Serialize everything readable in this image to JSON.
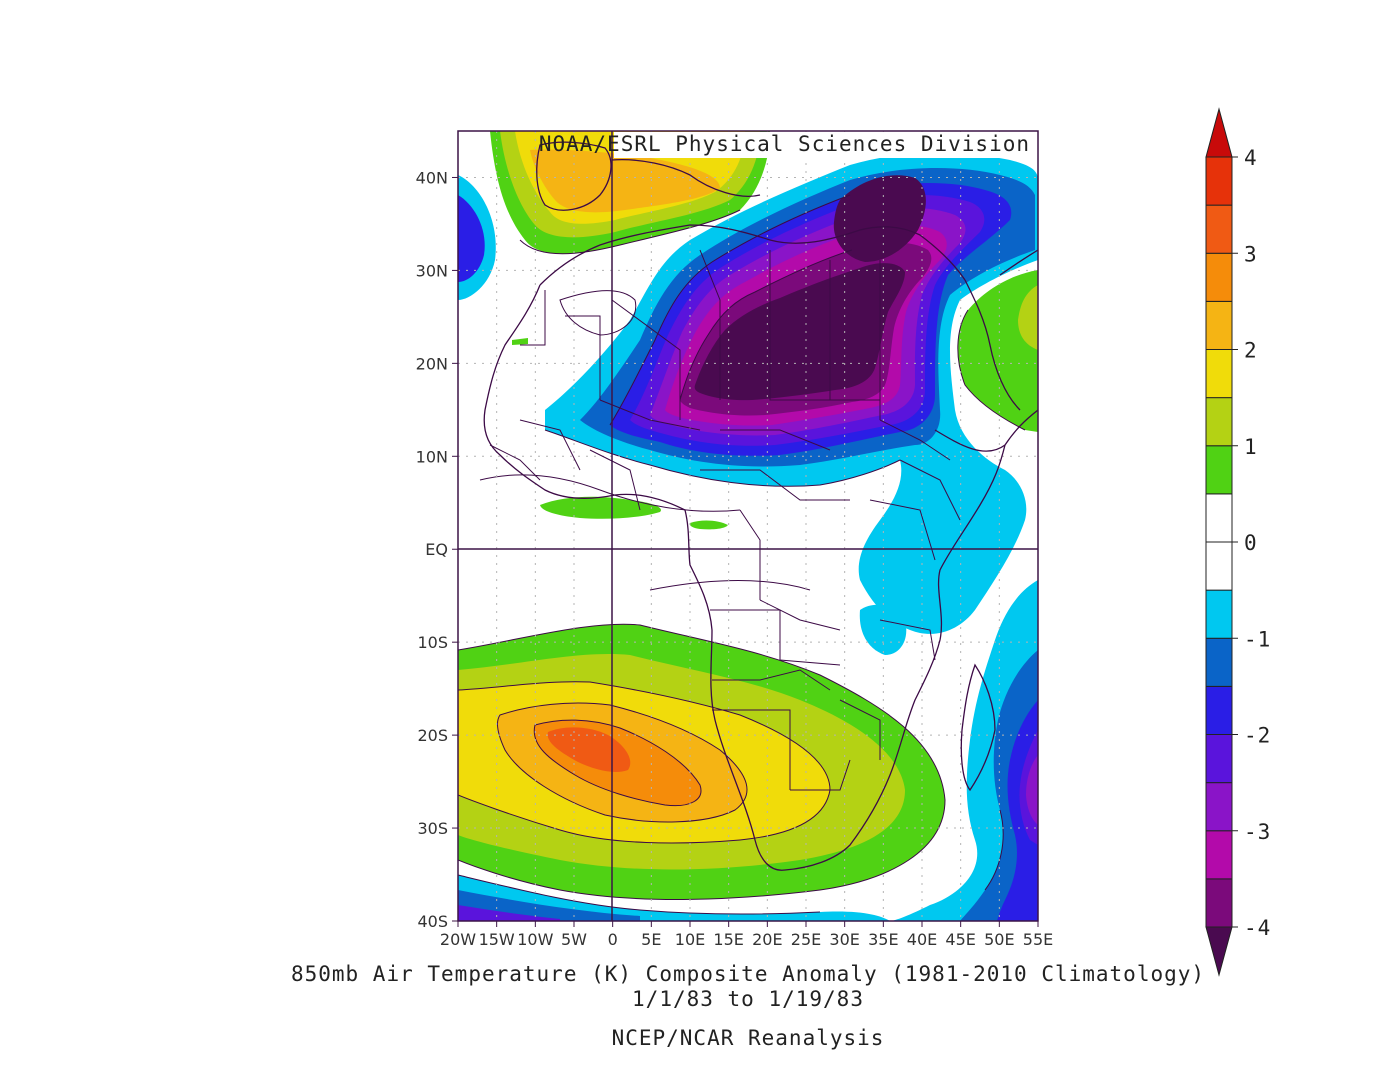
{
  "credit": "NOAA/ESRL Physical Sciences Division",
  "title_line1": "850mb Air Temperature (K) Composite Anomaly (1981-2010 Climatology)",
  "title_line2": "1/1/83  to 1/19/83",
  "source": "NCEP/NCAR Reanalysis",
  "map": {
    "lon_labels": [
      "20W",
      "15W",
      "10W",
      "5W",
      "0",
      "5E",
      "10E",
      "15E",
      "20E",
      "25E",
      "30E",
      "35E",
      "40E",
      "45E",
      "50E",
      "55E"
    ],
    "lat_labels": [
      "40N",
      "30N",
      "20N",
      "10N",
      "EQ",
      "10S",
      "20S",
      "30S",
      "40S"
    ],
    "lon_range": [
      -20,
      55
    ],
    "lat_range": [
      -40,
      45
    ]
  },
  "colorbar": {
    "labels": [
      "4",
      "3",
      "2",
      "1",
      "0",
      "-1",
      "-2",
      "-3",
      "-4"
    ],
    "levels": [
      -4,
      -3.5,
      -3,
      -2.5,
      -2,
      -1.5,
      -1,
      -0.5,
      0,
      0.5,
      1,
      1.5,
      2,
      2.5,
      3,
      3.5,
      4
    ],
    "colors": [
      "#4a0a50",
      "#7b0a7b",
      "#b30aaa",
      "#8a14c8",
      "#5a14dc",
      "#2a1ee6",
      "#0a64c8",
      "#00c8f0",
      "#ffffff",
      "#ffffff",
      "#50d214",
      "#b4d214",
      "#f0dc0a",
      "#f5b414",
      "#f58c0a",
      "#f05a14",
      "#e6320a",
      "#c80a0a"
    ]
  },
  "colors": {
    "frame": "#3c1446",
    "border": "#3c0a46",
    "contour": "#3c0a46"
  }
}
